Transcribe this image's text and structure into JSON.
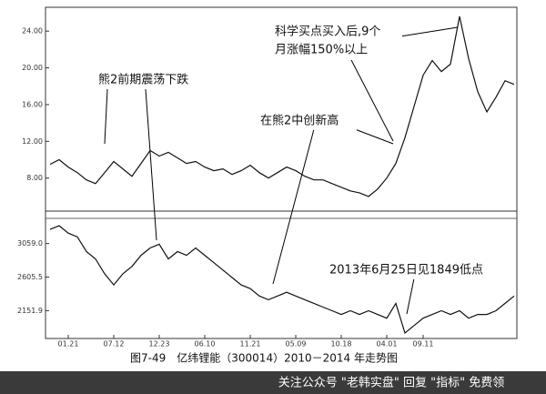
{
  "chart_data": [
    {
      "type": "line",
      "color": "#111111",
      "values": [
        9.5,
        10.0,
        9.2,
        8.6,
        7.8,
        7.4,
        8.6,
        9.8,
        9.0,
        8.2,
        9.6,
        11.0,
        10.4,
        10.8,
        10.2,
        9.6,
        9.8,
        9.2,
        8.8,
        9.0,
        8.4,
        8.8,
        9.4,
        8.6,
        8.0,
        8.6,
        9.2,
        8.8,
        8.2,
        7.8,
        7.8,
        7.4,
        7.0,
        6.6,
        6.4,
        6.0,
        6.8,
        8.0,
        9.6,
        12.4,
        15.8,
        19.2,
        20.8,
        19.6,
        20.4,
        25.6,
        21.0,
        17.4,
        15.2,
        16.8,
        18.6,
        18.2
      ],
      "ylim": [
        5,
        26
      ],
      "yticks": [
        {
          "value": 8,
          "label": "8.00"
        },
        {
          "value": 12,
          "label": "12.00"
        },
        {
          "value": 16,
          "label": "16.00"
        },
        {
          "value": 20,
          "label": "20.00"
        },
        {
          "value": 24,
          "label": "24.00"
        }
      ],
      "annotations": [
        {
          "lines": [
            "熊2前期震荡下跌"
          ]
        },
        {
          "lines": [
            "在熊2中创新高"
          ]
        },
        {
          "lines": [
            "科学买点买入后,9个",
            "月涨幅150%以上"
          ]
        }
      ]
    },
    {
      "type": "line",
      "color": "#111111",
      "values": [
        3250,
        3300,
        3200,
        3150,
        2950,
        2850,
        2650,
        2500,
        2650,
        2750,
        2900,
        3000,
        3050,
        2850,
        2950,
        2900,
        3000,
        2900,
        2800,
        2700,
        2600,
        2500,
        2450,
        2350,
        2300,
        2350,
        2400,
        2350,
        2300,
        2250,
        2200,
        2150,
        2100,
        2150,
        2100,
        2150,
        2100,
        2050,
        2250,
        1849,
        1950,
        2050,
        2100,
        2150,
        2100,
        2150,
        2050,
        2100,
        2100,
        2150,
        2250,
        2350
      ],
      "ylim": [
        1800,
        3350
      ],
      "yticks": [
        {
          "value": 2151.9,
          "label": "2151.9"
        },
        {
          "value": 2605.5,
          "label": "2605.5"
        },
        {
          "value": 3059,
          "label": "3059.0"
        }
      ],
      "xlim": [
        0,
        51
      ],
      "xticks": [
        {
          "value": 2,
          "label": "01.21"
        },
        {
          "value": 7,
          "label": "07.12"
        },
        {
          "value": 12,
          "label": "12.23"
        },
        {
          "value": 17,
          "label": "06.10"
        },
        {
          "value": 22,
          "label": "11.21"
        },
        {
          "value": 27,
          "label": "05.09"
        },
        {
          "value": 32,
          "label": "10.18"
        },
        {
          "value": 37,
          "label": "04.01"
        },
        {
          "value": 41,
          "label": "09.11"
        }
      ],
      "annotations": [
        {
          "lines": [
            "2013年6月25日见1849低点"
          ]
        }
      ]
    }
  ],
  "caption": "图7-49　亿纬锂能（300014）2010－2014 年走势图",
  "watermark": "关注公众号 \"老韩实盘\" 回复 \"指标\" 免费领"
}
